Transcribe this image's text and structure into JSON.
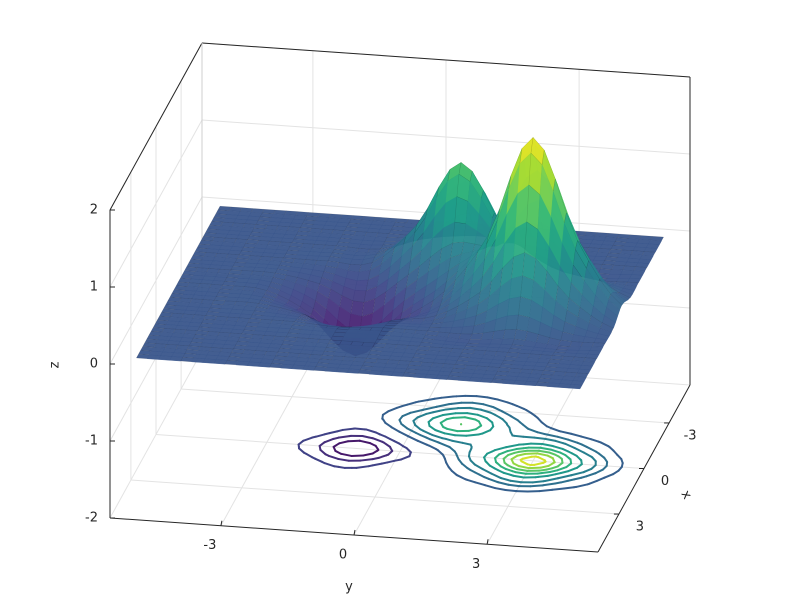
{
  "chart_data": {
    "type": "surface",
    "x": [
      -5,
      -4,
      -3,
      -2,
      -1,
      0,
      1,
      2,
      3,
      4,
      5
    ],
    "y": [
      -5,
      -4,
      -3,
      -2,
      -1,
      0,
      1,
      2,
      3,
      4,
      5
    ],
    "z": [
      [
        0,
        0,
        0,
        0,
        0,
        0,
        0,
        0,
        0,
        0,
        0
      ],
      [
        0,
        0,
        0,
        0,
        0,
        0,
        0.05,
        0,
        0,
        0,
        0
      ],
      [
        0,
        0,
        0,
        0,
        0,
        0.2,
        0.55,
        0.2,
        0,
        0,
        0
      ],
      [
        0,
        0,
        0,
        0,
        0.02,
        0.55,
        1.4,
        0.55,
        0.15,
        0,
        0
      ],
      [
        0,
        0,
        0,
        -0.1,
        -0.3,
        0.1,
        0.55,
        0.55,
        0.9,
        0.35,
        0
      ],
      [
        0,
        0,
        -0.03,
        -0.3,
        -0.8,
        -0.3,
        0.12,
        0.9,
        2.2,
        0.9,
        0.1
      ],
      [
        0,
        0,
        0,
        -0.1,
        -0.3,
        -0.1,
        0,
        0.35,
        0.9,
        0.35,
        0
      ],
      [
        0,
        0,
        0,
        0,
        -0.03,
        0,
        0,
        0,
        0.1,
        0,
        0
      ],
      [
        0,
        0,
        0,
        0,
        0,
        0,
        0,
        0,
        0,
        0,
        0
      ],
      [
        0,
        0,
        0,
        0,
        0,
        0,
        0,
        0,
        0,
        0,
        0
      ],
      [
        0,
        0,
        0,
        0,
        0,
        0,
        0,
        0,
        0,
        0,
        0
      ]
    ],
    "xlim": [
      -5.5,
      5.5
    ],
    "ylim": [
      -5.5,
      5.5
    ],
    "zlim": [
      -2,
      2
    ],
    "xticks": [
      -3,
      0,
      3
    ],
    "yticks": [
      -3,
      0,
      3
    ],
    "zticks": [
      -2,
      -1,
      0,
      1,
      2
    ],
    "xlabel": "x",
    "ylabel": "y",
    "zlabel": "z",
    "colormap": "viridis",
    "contour_levels": [
      -0.6,
      -0.4,
      -0.2,
      0.1,
      0.3,
      0.5,
      0.8,
      1.1,
      1.4,
      1.7,
      2.0
    ],
    "grid": true
  }
}
